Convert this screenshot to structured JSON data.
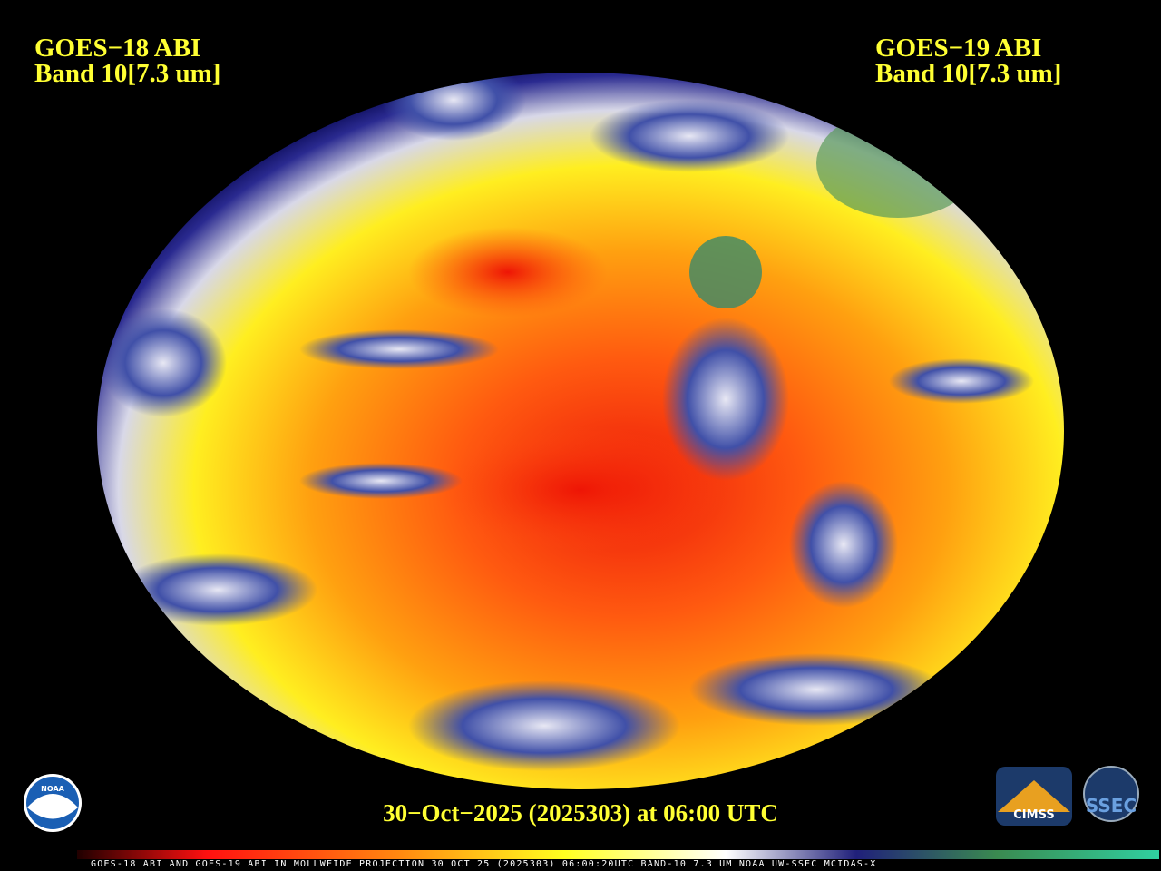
{
  "header": {
    "left": {
      "satellite": "GOES−18 ABI",
      "band": "Band 10[7.3 um]"
    },
    "right": {
      "satellite": "GOES−19 ABI",
      "band": "Band 10[7.3 um]"
    }
  },
  "footer": {
    "timestamp": "30−Oct−2025 (2025303) at 06:00 UTC"
  },
  "colorbar": {
    "caption": "GOES-18 ABI AND GOES-19 ABI IN MOLLWEIDE PROJECTION 30 OCT 25 (2025303) 06:00:20UTC BAND-10 7.3 UM NOAA UW-SSEC MCIDAS-X"
  },
  "logos": {
    "noaa": "NOAA",
    "cimss": "CIMSS",
    "ssec": "SSEC"
  }
}
